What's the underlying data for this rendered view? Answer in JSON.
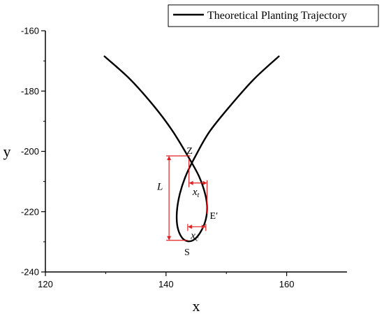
{
  "chart_data": {
    "type": "line",
    "title": "",
    "xlabel": "x",
    "ylabel": "y",
    "xlim": [
      120,
      170
    ],
    "ylim": [
      -240,
      -160
    ],
    "xticks": [
      120,
      140,
      160
    ],
    "yticks": [
      -160,
      -180,
      -200,
      -220,
      -240
    ],
    "grid": false,
    "legend_position": "top-right",
    "series": [
      {
        "name": "Theoretical Planting Trajectory",
        "color": "#000000",
        "x": [
          129.8,
          134.0,
          138.0,
          141.0,
          143.6,
          145.4,
          146.4,
          146.8,
          146.6,
          145.8,
          144.7,
          143.6,
          142.6,
          141.9,
          141.8,
          142.3,
          143.3,
          144.9,
          147.2,
          150.6,
          154.6,
          158.7
        ],
        "y": [
          -168.5,
          -176.0,
          -185.0,
          -193.0,
          -201.5,
          -208.0,
          -213.5,
          -218.0,
          -222.5,
          -226.5,
          -229.2,
          -229.8,
          -228.5,
          -225.0,
          -220.0,
          -214.0,
          -208.0,
          -201.5,
          -193.5,
          -185.0,
          -176.0,
          -168.5
        ]
      }
    ],
    "annotations": {
      "points": [
        {
          "label": "Z",
          "x": 143.8,
          "y": -202.0
        },
        {
          "label": "E′",
          "x": 146.8,
          "y": -221.5
        },
        {
          "label": "S",
          "x": 143.6,
          "y": -229.8
        }
      ],
      "dimensions": [
        {
          "label": "L",
          "orientation": "vertical",
          "x": 140.5,
          "from": -201.5,
          "to": -229.5
        },
        {
          "label": "x",
          "subscript": "t",
          "orientation": "horizontal",
          "y": -210.5,
          "from": 143.8,
          "to": 146.8
        },
        {
          "label": "x",
          "subscript": "c",
          "orientation": "horizontal",
          "y": -225.0,
          "from": 143.6,
          "to": 146.6
        }
      ],
      "color": "#e02020"
    }
  }
}
